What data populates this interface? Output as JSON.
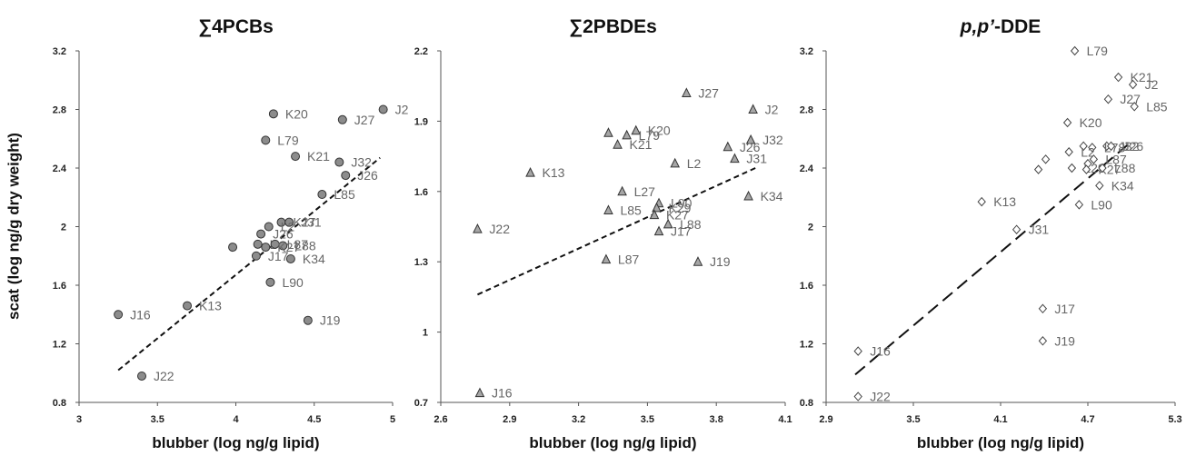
{
  "y_axis_label": "scat (log ng/g dry weight)",
  "chart_data": [
    {
      "type": "scatter",
      "title_prefix": "∑4PCBs",
      "title_rest": "",
      "xlabel": "blubber (log ng/g lipid)",
      "ylabel": "scat (log ng/g dry weight)",
      "xlim": [
        3,
        5
      ],
      "ylim": [
        0.8,
        3.2
      ],
      "xticks": [
        3,
        3.5,
        4,
        4.5,
        5
      ],
      "xtick_labels": [
        "3",
        "3.5",
        "4",
        "4.5",
        "5"
      ],
      "yticks": [
        0.8,
        1.2,
        1.6,
        2,
        2.4,
        2.8,
        3.2
      ],
      "ytick_labels": [
        "0.8",
        "1.2",
        "1.6",
        "2",
        "2.4",
        "2.8",
        "3.2"
      ],
      "marker": "circle",
      "marker_color": "#8c8c8c",
      "trendline": {
        "x": [
          3.25,
          4.92
        ],
        "y": [
          1.02,
          2.47
        ],
        "style": "short-dash"
      },
      "points": [
        {
          "label": "J2",
          "x": 4.94,
          "y": 2.8
        },
        {
          "label": "K20",
          "x": 4.24,
          "y": 2.77
        },
        {
          "label": "J27",
          "x": 4.68,
          "y": 2.73
        },
        {
          "label": "L79",
          "x": 4.19,
          "y": 2.59
        },
        {
          "label": "K21",
          "x": 4.38,
          "y": 2.48
        },
        {
          "label": "J32",
          "x": 4.66,
          "y": 2.44
        },
        {
          "label": "J26",
          "x": 4.7,
          "y": 2.35
        },
        {
          "label": "L85",
          "x": 4.55,
          "y": 2.22
        },
        {
          "label": "K27",
          "x": 4.29,
          "y": 2.03
        },
        {
          "label": "J31",
          "x": 4.34,
          "y": 2.03
        },
        {
          "label": "L2",
          "x": 4.21,
          "y": 2.0
        },
        {
          "label": "J26",
          "x": 4.16,
          "y": 1.95
        },
        {
          "label": "L",
          "x": 4.14,
          "y": 1.88
        },
        {
          "label": "L87",
          "x": 4.25,
          "y": 1.88
        },
        {
          "label": "L88",
          "x": 4.3,
          "y": 1.87
        },
        {
          "label": "K27",
          "x": 4.19,
          "y": 1.86
        },
        {
          "label": "",
          "x": 3.98,
          "y": 1.86
        },
        {
          "label": "J17",
          "x": 4.13,
          "y": 1.8
        },
        {
          "label": "K34",
          "x": 4.35,
          "y": 1.78
        },
        {
          "label": "L90",
          "x": 4.22,
          "y": 1.62
        },
        {
          "label": "K13",
          "x": 3.69,
          "y": 1.46
        },
        {
          "label": "J16",
          "x": 3.25,
          "y": 1.4
        },
        {
          "label": "J19",
          "x": 4.46,
          "y": 1.36
        },
        {
          "label": "J22",
          "x": 3.4,
          "y": 0.98
        }
      ]
    },
    {
      "type": "scatter",
      "title_prefix": "∑2PBDEs",
      "title_rest": "",
      "xlabel": "blubber (log ng/g lipid)",
      "ylabel": "",
      "xlim": [
        2.6,
        4.1
      ],
      "ylim": [
        0.7,
        2.2
      ],
      "xticks": [
        2.6,
        2.9,
        3.2,
        3.5,
        3.8,
        4.1
      ],
      "xtick_labels": [
        "2.6",
        "2.9",
        "3.2",
        "3.5",
        "3.8",
        "4.1"
      ],
      "yticks": [
        0.7,
        1,
        1.3,
        1.6,
        1.9,
        2.2
      ],
      "ytick_labels": [
        "0.7",
        "1",
        "1.3",
        "1.6",
        "1.9",
        "2.2"
      ],
      "marker": "triangle",
      "marker_color": "#a6a6a6",
      "trendline": {
        "x": [
          2.76,
          3.97
        ],
        "y": [
          1.16,
          1.7
        ],
        "style": "short-dash"
      },
      "points": [
        {
          "label": "J27",
          "x": 3.67,
          "y": 2.02
        },
        {
          "label": "J2",
          "x": 3.96,
          "y": 1.95
        },
        {
          "label": "K20",
          "x": 3.45,
          "y": 1.86
        },
        {
          "label": "L79",
          "x": 3.41,
          "y": 1.84
        },
        {
          "label": "",
          "x": 3.33,
          "y": 1.85
        },
        {
          "label": "K21",
          "x": 3.37,
          "y": 1.8
        },
        {
          "label": "J32",
          "x": 3.95,
          "y": 1.82
        },
        {
          "label": "J26",
          "x": 3.85,
          "y": 1.79
        },
        {
          "label": "J31",
          "x": 3.88,
          "y": 1.74
        },
        {
          "label": "L2",
          "x": 3.62,
          "y": 1.72
        },
        {
          "label": "K13",
          "x": 2.99,
          "y": 1.68
        },
        {
          "label": "L27",
          "x": 3.39,
          "y": 1.6
        },
        {
          "label": "K34",
          "x": 3.94,
          "y": 1.58
        },
        {
          "label": "L90",
          "x": 3.55,
          "y": 1.55
        },
        {
          "label": "L85",
          "x": 3.33,
          "y": 1.52
        },
        {
          "label": "K29",
          "x": 3.54,
          "y": 1.53
        },
        {
          "label": "K27",
          "x": 3.53,
          "y": 1.5
        },
        {
          "label": "L88",
          "x": 3.59,
          "y": 1.46
        },
        {
          "label": "J17",
          "x": 3.55,
          "y": 1.43
        },
        {
          "label": "J22",
          "x": 2.76,
          "y": 1.44
        },
        {
          "label": "L87",
          "x": 3.32,
          "y": 1.31
        },
        {
          "label": "J19",
          "x": 3.72,
          "y": 1.3
        },
        {
          "label": "J16",
          "x": 2.77,
          "y": 0.74
        }
      ]
    },
    {
      "type": "scatter",
      "title_prefix": "p,p’",
      "title_rest": "-DDE",
      "xlabel": "blubber (log ng/g lipid)",
      "ylabel": "",
      "xlim": [
        2.9,
        5.3
      ],
      "ylim": [
        0.8,
        3.2
      ],
      "xticks": [
        2.9,
        3.5,
        4.1,
        4.7,
        5.3
      ],
      "xtick_labels": [
        "2.9",
        "3.5",
        "4.1",
        "4.7",
        "5.3"
      ],
      "yticks": [
        0.8,
        1.2,
        1.6,
        2,
        2.4,
        2.8,
        3.2
      ],
      "ytick_labels": [
        "0.8",
        "1.2",
        "1.6",
        "2",
        "2.4",
        "2.8",
        "3.2"
      ],
      "marker": "diamond",
      "marker_color": "#ffffff",
      "trendline": {
        "x": [
          3.1,
          5.0
        ],
        "y": [
          0.99,
          2.58
        ],
        "style": "long-dash"
      },
      "points": [
        {
          "label": "L79",
          "x": 4.61,
          "y": 3.2
        },
        {
          "label": "K21",
          "x": 4.91,
          "y": 3.02
        },
        {
          "label": "J2",
          "x": 5.01,
          "y": 2.97
        },
        {
          "label": "J27",
          "x": 4.84,
          "y": 2.87
        },
        {
          "label": "L85",
          "x": 5.02,
          "y": 2.82
        },
        {
          "label": "K20",
          "x": 4.56,
          "y": 2.71
        },
        {
          "label": "J32",
          "x": 4.83,
          "y": 2.55
        },
        {
          "label": "J26",
          "x": 4.86,
          "y": 2.55
        },
        {
          "label": "L78",
          "x": 4.73,
          "y": 2.54
        },
        {
          "label": "",
          "x": 4.67,
          "y": 2.55
        },
        {
          "label": "L2",
          "x": 4.57,
          "y": 2.51
        },
        {
          "label": "L87",
          "x": 4.74,
          "y": 2.46
        },
        {
          "label": "",
          "x": 4.7,
          "y": 2.43
        },
        {
          "label": "",
          "x": 4.41,
          "y": 2.46
        },
        {
          "label": "L29",
          "x": 4.59,
          "y": 2.4
        },
        {
          "label": "K27",
          "x": 4.69,
          "y": 2.39
        },
        {
          "label": "L88",
          "x": 4.8,
          "y": 2.4
        },
        {
          "label": "",
          "x": 4.36,
          "y": 2.39
        },
        {
          "label": "K34",
          "x": 4.78,
          "y": 2.28
        },
        {
          "label": "K13",
          "x": 3.97,
          "y": 2.17
        },
        {
          "label": "L90",
          "x": 4.64,
          "y": 2.15
        },
        {
          "label": "J31",
          "x": 4.21,
          "y": 1.98
        },
        {
          "label": "J17",
          "x": 4.39,
          "y": 1.44
        },
        {
          "label": "J19",
          "x": 4.39,
          "y": 1.22
        },
        {
          "label": "J16",
          "x": 3.12,
          "y": 1.15
        },
        {
          "label": "J22",
          "x": 3.12,
          "y": 0.84
        }
      ]
    }
  ]
}
